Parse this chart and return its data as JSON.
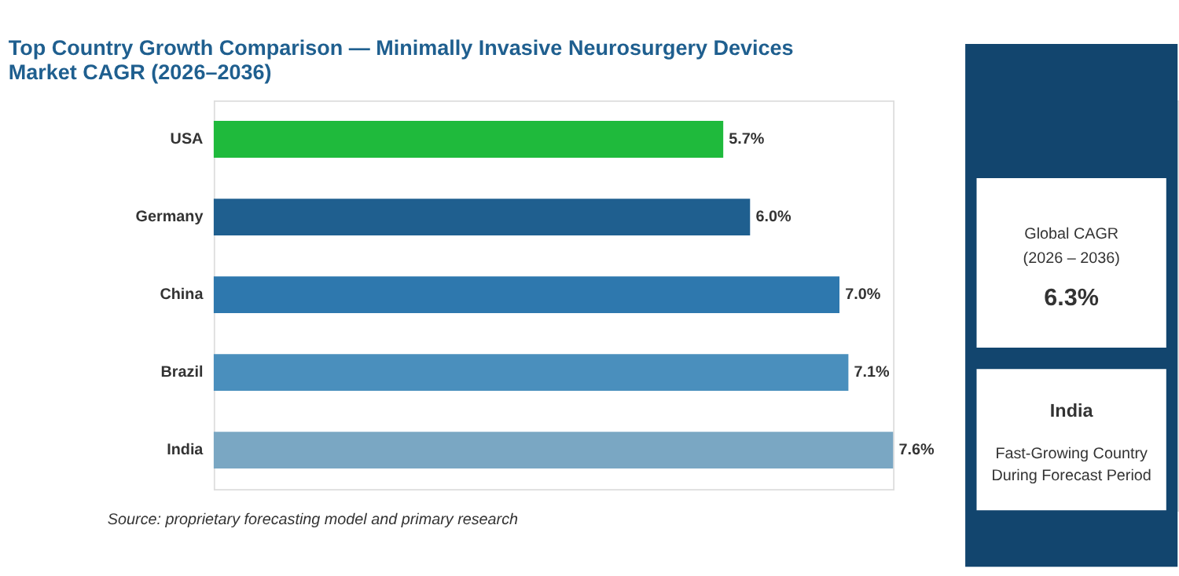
{
  "chart_data": {
    "type": "bar",
    "orientation": "horizontal",
    "title": [
      "Top Country Growth Comparison — Minimally Invasive Neurosurgery Devices",
      "Market CAGR (2026–2036)"
    ],
    "categories": [
      "USA",
      "Germany",
      "China",
      "Brazil",
      "India"
    ],
    "values": [
      5.7,
      6.0,
      7.0,
      7.1,
      7.6
    ],
    "value_labels": [
      "5.7%",
      "6.0%",
      "7.0%",
      "7.1%",
      "7.6%"
    ],
    "colors": [
      "#1fba3c",
      "#1f5f8f",
      "#2e78ae",
      "#4a8fbd",
      "#7aa7c3"
    ],
    "tick_labels": "y",
    "grid": false,
    "annotations": [
      "Source: proprietary forecasting model and primary research",
      "Global CAGR",
      "(2026 – 2036)",
      "6.3%",
      "India",
      "Fast-Growing Country",
      "During Forecast Period"
    ]
  }
}
